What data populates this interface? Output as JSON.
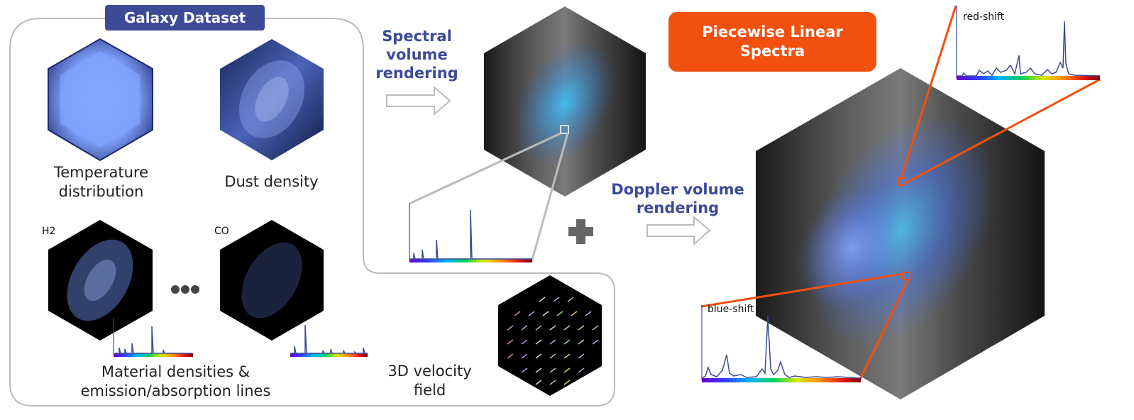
{
  "title_badge": "Galaxy Dataset",
  "pwl_badge": {
    "line1": "Piecewise Linear",
    "line2": "Spectra"
  },
  "labels": {
    "temperature": {
      "line1": "Temperature",
      "line2": "distribution"
    },
    "dust": "Dust density",
    "h2": "H2",
    "co": "CO",
    "material": {
      "line1": "Material densities &",
      "line2": "emission/absorption lines"
    },
    "velocity": {
      "line1": "3D velocity",
      "line2": "field"
    },
    "spectral": {
      "line1": "Spectral",
      "line2": "volume",
      "line3": "rendering"
    },
    "doppler": {
      "line1": "Doppler volume",
      "line2": "rendering"
    },
    "red_shift": "red-shift",
    "blue_shift": "blue-shift"
  },
  "colors": {
    "accent_blue": "#3d4b96",
    "accent_orange": "#f2500f",
    "outline_gray": "#bbbbbb"
  },
  "icons": [
    "arrow-right-icon",
    "plus-icon",
    "ellipsis-icon"
  ]
}
